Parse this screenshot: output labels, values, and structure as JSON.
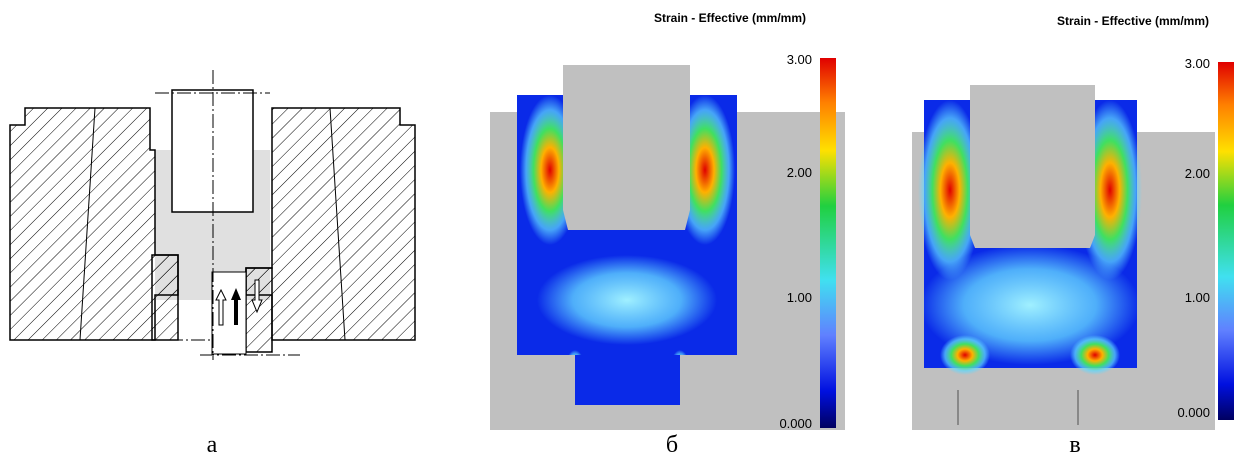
{
  "panels": [
    {
      "caption": "а"
    },
    {
      "caption": "б",
      "colorbar": {
        "title": "Strain - Effective (mm/mm)",
        "ticks": [
          "3.00",
          "2.00",
          "1.00",
          "0.000"
        ]
      }
    },
    {
      "caption": "в",
      "colorbar": {
        "title": "Strain - Effective (mm/mm)",
        "ticks": [
          "3.00",
          "2.00",
          "1.00",
          "0.000"
        ]
      }
    }
  ]
}
